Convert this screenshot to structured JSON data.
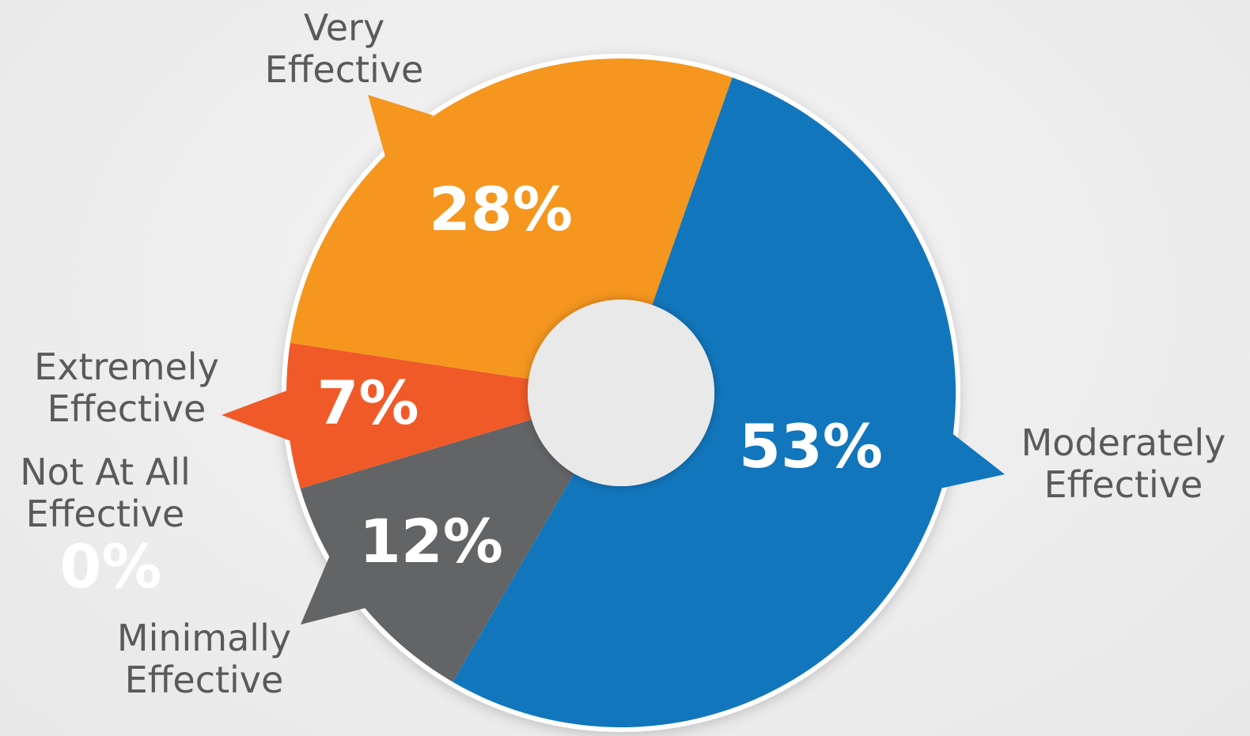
{
  "chart_data": {
    "type": "donut",
    "categories": [
      "Moderately Effective",
      "Minimally Effective",
      "Not At All Effective",
      "Extremely Effective",
      "Very Effective"
    ],
    "values": [
      53,
      12,
      0,
      7,
      28
    ],
    "value_labels": [
      "53%",
      "12%",
      "0%",
      "7%",
      "28%"
    ],
    "colors": [
      "#1276bc",
      "#636466",
      "#a7a8aa",
      "#f05a28",
      "#f5961f"
    ],
    "start_angle": 19.4
  }
}
